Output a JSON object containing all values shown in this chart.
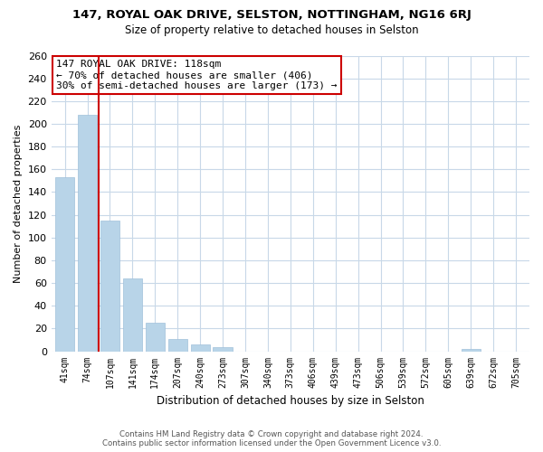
{
  "title": "147, ROYAL OAK DRIVE, SELSTON, NOTTINGHAM, NG16 6RJ",
  "subtitle": "Size of property relative to detached houses in Selston",
  "xlabel": "Distribution of detached houses by size in Selston",
  "ylabel": "Number of detached properties",
  "categories": [
    "41sqm",
    "74sqm",
    "107sqm",
    "141sqm",
    "174sqm",
    "207sqm",
    "240sqm",
    "273sqm",
    "307sqm",
    "340sqm",
    "373sqm",
    "406sqm",
    "439sqm",
    "473sqm",
    "506sqm",
    "539sqm",
    "572sqm",
    "605sqm",
    "639sqm",
    "672sqm",
    "705sqm"
  ],
  "values": [
    153,
    208,
    115,
    64,
    25,
    11,
    6,
    4,
    0,
    0,
    0,
    0,
    0,
    0,
    0,
    0,
    0,
    0,
    2,
    0,
    0
  ],
  "bar_color": "#b8d4e8",
  "bar_edgecolor": "#a0c0da",
  "vline_x": 1.5,
  "vline_color": "#cc0000",
  "annotation_title": "147 ROYAL OAK DRIVE: 118sqm",
  "annotation_line1": "← 70% of detached houses are smaller (406)",
  "annotation_line2": "30% of semi-detached houses are larger (173) →",
  "annotation_box_edgecolor": "#cc0000",
  "ylim": [
    0,
    260
  ],
  "yticks": [
    0,
    20,
    40,
    60,
    80,
    100,
    120,
    140,
    160,
    180,
    200,
    220,
    240,
    260
  ],
  "footer_line1": "Contains HM Land Registry data © Crown copyright and database right 2024.",
  "footer_line2": "Contains public sector information licensed under the Open Government Licence v3.0.",
  "background_color": "#ffffff",
  "grid_color": "#c8d8e8"
}
